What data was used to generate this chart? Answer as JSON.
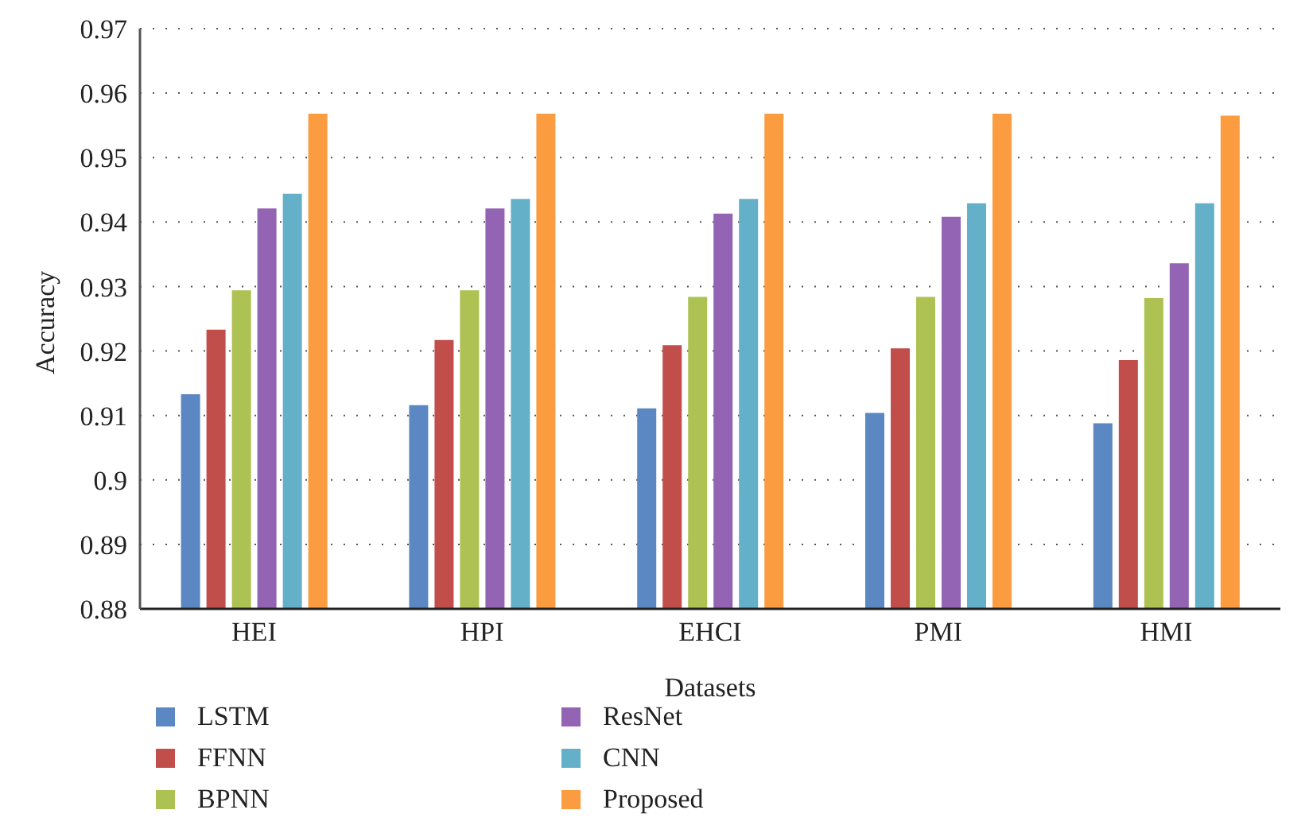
{
  "chart_data": {
    "type": "bar",
    "xlabel": "Datasets",
    "ylabel": "Accuracy",
    "categories": [
      "HEI",
      "HPI",
      "EHCI",
      "PMI",
      "HMI"
    ],
    "series": [
      {
        "name": "LSTM",
        "color": "#5b87c3",
        "values": [
          0.9133,
          0.9116,
          0.9111,
          0.9104,
          0.9088
        ]
      },
      {
        "name": "FFNN",
        "color": "#c24e4b",
        "values": [
          0.9233,
          0.9217,
          0.9209,
          0.9204,
          0.9186
        ]
      },
      {
        "name": "BPNN",
        "color": "#aec153",
        "values": [
          0.9294,
          0.9294,
          0.9284,
          0.9284,
          0.9282
        ]
      },
      {
        "name": "ResNet",
        "color": "#9264b3",
        "values": [
          0.9421,
          0.9421,
          0.9413,
          0.9408,
          0.9336
        ]
      },
      {
        "name": "CNN",
        "color": "#64b0c8",
        "values": [
          0.9444,
          0.9436,
          0.9436,
          0.9429,
          0.9429
        ]
      },
      {
        "name": "Proposed",
        "color": "#fa9c3f",
        "values": [
          0.9568,
          0.9568,
          0.9568,
          0.9568,
          0.9565
        ]
      }
    ],
    "ylim": [
      0.88,
      0.97
    ],
    "yticks": [
      0.88,
      0.89,
      0.9,
      0.91,
      0.92,
      0.93,
      0.94,
      0.95,
      0.96,
      0.97
    ],
    "grid": "y",
    "legend": "bottom"
  }
}
